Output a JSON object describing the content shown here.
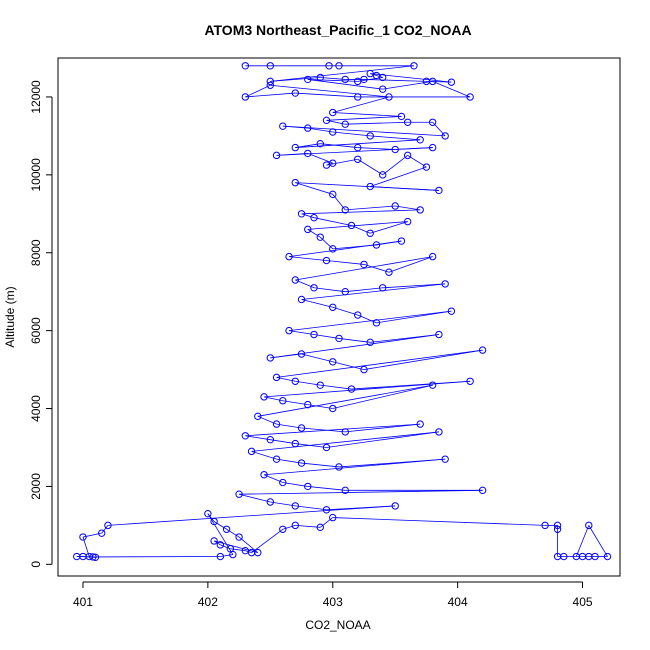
{
  "chart_data": {
    "type": "line",
    "title": "ATOM3 Northeast_Pacific_1 CO2_NOAA",
    "xlabel": "CO2_NOAA",
    "ylabel": "Altitude (m)",
    "xlim": [
      400.8,
      405.3
    ],
    "ylim": [
      -300,
      13000
    ],
    "x_ticks": [
      401,
      402,
      403,
      404,
      405
    ],
    "y_ticks": [
      0,
      2000,
      4000,
      6000,
      8000,
      10000,
      12000
    ],
    "grid": false,
    "legend": "none",
    "series_color": "#0000ff",
    "marker": "open-circle",
    "series": [
      {
        "points": [
          [
            402.3,
            12800
          ],
          [
            402.5,
            12800
          ],
          [
            402.97,
            12800
          ],
          [
            403.05,
            12800
          ],
          [
            403.65,
            12800
          ],
          [
            402.5,
            12400
          ],
          [
            402.9,
            12500
          ],
          [
            403.1,
            12450
          ],
          [
            403.25,
            12450
          ],
          [
            403.75,
            12400
          ],
          [
            403.95,
            12380
          ],
          [
            403.3,
            12600
          ],
          [
            403.35,
            12550
          ],
          [
            403.4,
            12500
          ],
          [
            403.2,
            12400
          ],
          [
            402.8,
            12450
          ],
          [
            403.4,
            12200
          ],
          [
            403.8,
            12400
          ],
          [
            404.1,
            12000
          ],
          [
            403.2,
            12000
          ],
          [
            402.7,
            12100
          ],
          [
            402.3,
            12000
          ],
          [
            402.5,
            12300
          ],
          [
            403.45,
            12000
          ],
          [
            403.0,
            11600
          ],
          [
            403.55,
            11500
          ],
          [
            402.95,
            11400
          ],
          [
            403.1,
            11300
          ],
          [
            403.6,
            11350
          ],
          [
            403.8,
            11350
          ],
          [
            403.9,
            11000
          ],
          [
            402.6,
            11250
          ],
          [
            402.8,
            11200
          ],
          [
            403.0,
            11100
          ],
          [
            403.3,
            11000
          ],
          [
            403.7,
            10900
          ],
          [
            402.7,
            10700
          ],
          [
            402.9,
            10800
          ],
          [
            403.2,
            10700
          ],
          [
            403.5,
            10650
          ],
          [
            403.8,
            10700
          ],
          [
            402.55,
            10500
          ],
          [
            402.8,
            10550
          ],
          [
            403.0,
            10300
          ],
          [
            402.95,
            10250
          ],
          [
            403.2,
            10400
          ],
          [
            403.4,
            10000
          ],
          [
            403.6,
            10500
          ],
          [
            403.75,
            10200
          ],
          [
            403.3,
            9700
          ],
          [
            403.85,
            9600
          ],
          [
            402.7,
            9800
          ],
          [
            403.0,
            9500
          ],
          [
            403.1,
            9100
          ],
          [
            403.5,
            9200
          ],
          [
            403.7,
            9100
          ],
          [
            402.75,
            9000
          ],
          [
            402.85,
            8900
          ],
          [
            403.15,
            8700
          ],
          [
            403.3,
            8500
          ],
          [
            403.6,
            8800
          ],
          [
            402.8,
            8600
          ],
          [
            402.9,
            8400
          ],
          [
            403.0,
            8100
          ],
          [
            403.35,
            8200
          ],
          [
            403.55,
            8300
          ],
          [
            402.65,
            7900
          ],
          [
            402.95,
            7800
          ],
          [
            403.25,
            7700
          ],
          [
            403.45,
            7500
          ],
          [
            403.8,
            7900
          ],
          [
            402.7,
            7300
          ],
          [
            402.85,
            7100
          ],
          [
            403.1,
            7000
          ],
          [
            403.4,
            7100
          ],
          [
            403.9,
            7200
          ],
          [
            402.75,
            6800
          ],
          [
            403.0,
            6600
          ],
          [
            403.2,
            6400
          ],
          [
            403.35,
            6200
          ],
          [
            403.95,
            6500
          ],
          [
            402.65,
            6000
          ],
          [
            402.85,
            5900
          ],
          [
            403.05,
            5800
          ],
          [
            403.3,
            5700
          ],
          [
            403.85,
            5900
          ],
          [
            402.5,
            5300
          ],
          [
            402.75,
            5400
          ],
          [
            403.0,
            5200
          ],
          [
            403.25,
            5000
          ],
          [
            404.2,
            5500
          ],
          [
            402.55,
            4800
          ],
          [
            402.7,
            4700
          ],
          [
            402.9,
            4600
          ],
          [
            403.15,
            4500
          ],
          [
            404.1,
            4700
          ],
          [
            402.45,
            4300
          ],
          [
            402.6,
            4200
          ],
          [
            402.8,
            4100
          ],
          [
            403.0,
            4000
          ],
          [
            403.8,
            4600
          ],
          [
            402.4,
            3800
          ],
          [
            402.55,
            3600
          ],
          [
            402.75,
            3500
          ],
          [
            403.1,
            3400
          ],
          [
            403.7,
            3600
          ],
          [
            402.3,
            3300
          ],
          [
            402.5,
            3200
          ],
          [
            402.7,
            3100
          ],
          [
            402.95,
            3000
          ],
          [
            403.85,
            3400
          ],
          [
            402.35,
            2900
          ],
          [
            402.55,
            2700
          ],
          [
            402.75,
            2600
          ],
          [
            403.05,
            2500
          ],
          [
            403.9,
            2700
          ],
          [
            402.45,
            2300
          ],
          [
            402.6,
            2100
          ],
          [
            402.8,
            2000
          ],
          [
            403.1,
            1900
          ],
          [
            404.2,
            1900
          ],
          [
            402.25,
            1800
          ],
          [
            402.5,
            1600
          ],
          [
            402.7,
            1500
          ],
          [
            402.95,
            1400
          ],
          [
            403.5,
            1500
          ],
          [
            401.2,
            1000
          ],
          [
            401.15,
            800
          ],
          [
            401.0,
            700
          ],
          [
            401.05,
            200
          ],
          [
            401.1,
            180
          ],
          [
            401.0,
            200
          ],
          [
            400.95,
            200
          ],
          [
            401.08,
            190
          ],
          [
            402.1,
            200
          ],
          [
            402.2,
            250
          ],
          [
            402.0,
            1300
          ],
          [
            402.05,
            1100
          ],
          [
            402.15,
            900
          ],
          [
            402.25,
            700
          ],
          [
            402.4,
            300
          ],
          [
            402.05,
            600
          ],
          [
            402.1,
            500
          ],
          [
            402.18,
            400
          ],
          [
            402.3,
            350
          ],
          [
            402.35,
            300
          ],
          [
            402.6,
            900
          ],
          [
            402.7,
            1000
          ],
          [
            402.9,
            950
          ],
          [
            403.0,
            1200
          ],
          [
            404.7,
            1000
          ],
          [
            404.8,
            1000
          ],
          [
            404.8,
            900
          ],
          [
            404.8,
            200
          ],
          [
            404.85,
            200
          ],
          [
            405.0,
            200
          ],
          [
            405.05,
            200
          ],
          [
            405.1,
            200
          ],
          [
            405.2,
            200
          ],
          [
            405.05,
            1000
          ],
          [
            404.95,
            200
          ]
        ]
      }
    ]
  }
}
